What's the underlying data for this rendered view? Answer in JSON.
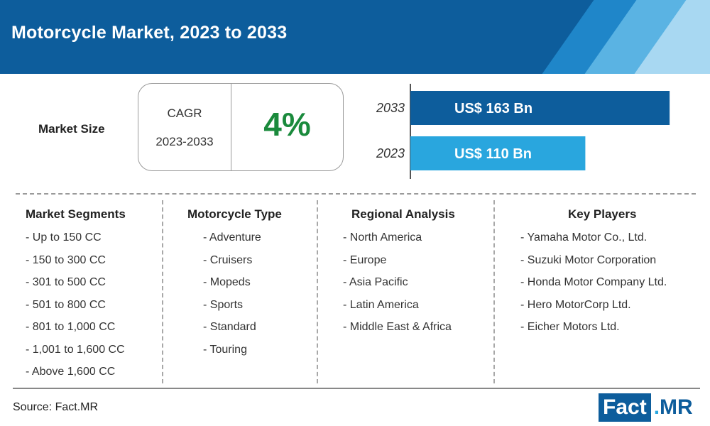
{
  "header": {
    "title": "Motorcycle Market, 2023 to 2033"
  },
  "market_size": {
    "label": "Market Size",
    "cagr_label": "CAGR",
    "cagr_period": "2023-2033",
    "cagr_value": "4%"
  },
  "chart_data": {
    "type": "bar",
    "orientation": "horizontal",
    "categories": [
      "2033",
      "2023"
    ],
    "values": [
      163,
      110
    ],
    "value_labels": [
      "US$ 163 Bn",
      "US$ 110 Bn"
    ],
    "bar_colors": [
      "#0d5d9c",
      "#29a6de"
    ],
    "unit": "US$ Bn",
    "xlim": [
      0,
      175
    ]
  },
  "columns": [
    {
      "title": "Market Segments",
      "items": [
        "- Up to 150 CC",
        "- 150 to 300 CC",
        "- 301 to 500 CC",
        "- 501 to 800 CC",
        "- 801 to 1,000 CC",
        "- 1,001 to 1,600 CC",
        "- Above 1,600 CC"
      ]
    },
    {
      "title": "Motorcycle Type",
      "items": [
        "- Adventure",
        "- Cruisers",
        "- Mopeds",
        "- Sports",
        "- Standard",
        "- Touring"
      ]
    },
    {
      "title": "Regional Analysis",
      "items": [
        "- North America",
        "- Europe",
        "- Asia Pacific",
        "- Latin America",
        "- Middle East & Africa"
      ]
    },
    {
      "title": "Key Players",
      "items": [
        "- Yamaha Motor Co., Ltd.",
        "- Suzuki Motor Corporation",
        "- Honda Motor Company Ltd.",
        "- Hero MotorCorp Ltd.",
        "- Eicher Motors Ltd."
      ]
    }
  ],
  "footer": {
    "source": "Source: Fact.MR",
    "logo_fact": "Fact",
    "logo_dot": ".",
    "logo_mr": "MR"
  }
}
